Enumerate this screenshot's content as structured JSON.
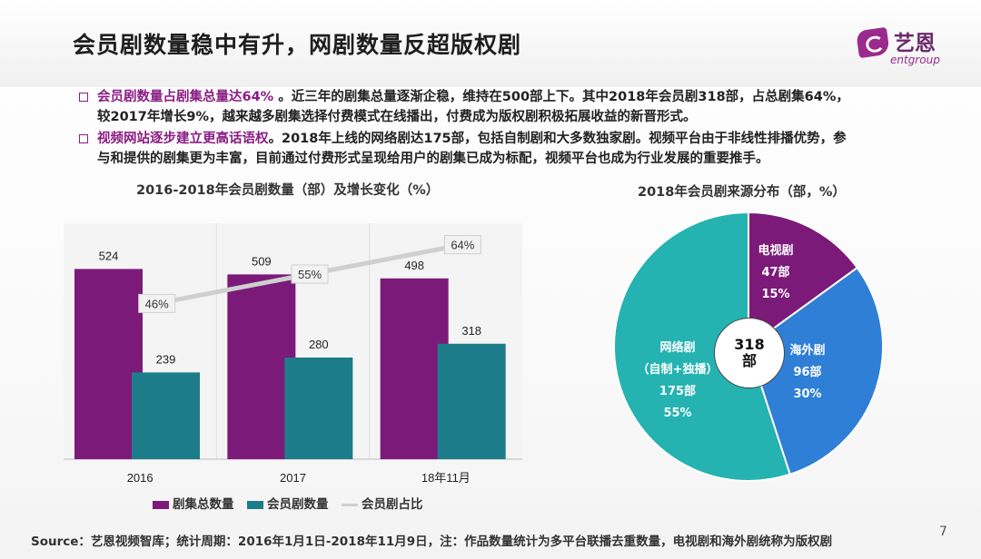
{
  "header": {
    "title": "会员剧数量稳中有升，网剧数量反超版权剧",
    "logo_cn": "艺恩",
    "logo_en": "entgroup"
  },
  "bullets": [
    {
      "highlight": "会员剧数量占剧集总量达64%",
      "line1": " 。近三年的剧集总量逐渐企稳，维持在500部上下。其中2018年会员剧318部，占总剧集64%，",
      "line2": "较2017年增长9%，越来越多剧集选择付费模式在线播出，付费成为版权剧积极拓展收益的新晋形式。"
    },
    {
      "highlight": "视频网站逐步建立更高话语权",
      "line1": "。2018年上线的网络剧达175部，包括自制剧和大多数独家剧。视频平台由于非线性排播优势，参",
      "line2": "与和提供的剧集更为丰富，目前通过付费形式呈现给用户的剧集已成为标配，视频平台也成为行业发展的重要推手。"
    }
  ],
  "chart_data": [
    {
      "type": "bar",
      "title": "2016-2018年会员剧数量（部）及增长变化（%）",
      "categories": [
        "2016",
        "2017",
        "18年11月"
      ],
      "series": [
        {
          "name": "剧集总数量",
          "kind": "bar",
          "color": "#7b1a79",
          "values": [
            524,
            509,
            498
          ],
          "labels": [
            "524",
            "509",
            "498"
          ]
        },
        {
          "name": "会员剧数量",
          "kind": "bar",
          "color": "#1c7c8a",
          "values": [
            239,
            280,
            318
          ],
          "labels": [
            "239",
            "280",
            "318"
          ]
        },
        {
          "name": "会员剧占比",
          "kind": "line",
          "color": "#cfcfcf",
          "values": [
            46,
            55,
            64
          ],
          "labels": [
            "46%",
            "55%",
            "64%"
          ]
        }
      ],
      "ylim": [
        0,
        600
      ],
      "legend": "bottom"
    },
    {
      "type": "pie",
      "title": "2018年会员剧来源分布（部，%）",
      "center_label": [
        "318",
        "部"
      ],
      "slices": [
        {
          "name": "电视剧",
          "count_label": "47部",
          "value": 15,
          "pct_label": "15%",
          "color": "#7b1a79"
        },
        {
          "name": "海外剧",
          "count_label": "96部",
          "value": 30,
          "pct_label": "30%",
          "color": "#2f7fd6"
        },
        {
          "name": "网络剧",
          "sub": "（自制+独播）",
          "count_label": "175部",
          "value": 55,
          "pct_label": "55%",
          "color": "#24b3b0"
        }
      ]
    }
  ],
  "footer": {
    "source": "Source：艺恩视频智库；统计周期：2016年1月1日-2018年11月9日，注：作品数量统计为多平台联播去重数量，电视剧和海外剧统称为版权剧",
    "page": "7"
  }
}
